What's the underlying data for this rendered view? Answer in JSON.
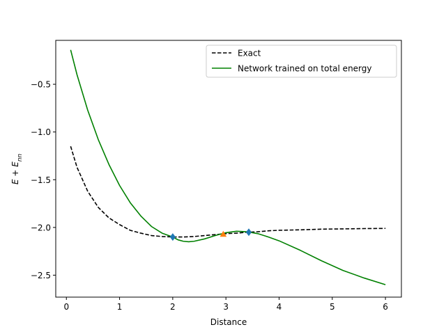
{
  "chart_data": {
    "type": "line",
    "xlabel": "Distance",
    "ylabel": "E + E_nn",
    "xlim": [
      -0.2,
      6.3
    ],
    "ylim": [
      -2.73,
      -0.04
    ],
    "xticks": [
      0,
      1,
      2,
      3,
      4,
      5,
      6
    ],
    "yticks": [
      -2.5,
      -2.0,
      -1.5,
      -1.0,
      -0.5
    ],
    "xtick_labels": [
      "0",
      "1",
      "2",
      "3",
      "4",
      "5",
      "6"
    ],
    "ytick_labels": [
      "−2.5",
      "−2.0",
      "−1.5",
      "−1.0",
      "−0.5"
    ],
    "grid": false,
    "legend_position": "upper right",
    "series": [
      {
        "name": "Exact",
        "color": "#000000",
        "style": "dashed",
        "x": [
          0.08,
          0.2,
          0.4,
          0.6,
          0.8,
          1.0,
          1.2,
          1.4,
          1.6,
          1.8,
          2.0,
          2.2,
          2.4,
          2.6,
          2.8,
          3.0,
          3.2,
          3.4,
          3.6,
          3.8,
          4.0,
          4.4,
          4.8,
          5.2,
          5.6,
          6.0
        ],
        "y": [
          -1.15,
          -1.37,
          -1.62,
          -1.79,
          -1.9,
          -1.97,
          -2.03,
          -2.06,
          -2.085,
          -2.095,
          -2.1,
          -2.1,
          -2.095,
          -2.085,
          -2.075,
          -2.065,
          -2.06,
          -2.05,
          -2.045,
          -2.035,
          -2.03,
          -2.025,
          -2.018,
          -2.015,
          -2.012,
          -2.01
        ]
      },
      {
        "name": "Network trained on total energy",
        "color": "#008000",
        "style": "solid",
        "x": [
          0.08,
          0.2,
          0.4,
          0.6,
          0.8,
          1.0,
          1.2,
          1.4,
          1.6,
          1.8,
          2.0,
          2.1,
          2.2,
          2.3,
          2.4,
          2.6,
          2.8,
          3.0,
          3.2,
          3.4,
          3.6,
          3.8,
          4.0,
          4.4,
          4.8,
          5.2,
          5.6,
          6.0
        ],
        "y": [
          -0.14,
          -0.4,
          -0.77,
          -1.08,
          -1.34,
          -1.56,
          -1.74,
          -1.88,
          -1.99,
          -2.06,
          -2.1,
          -2.13,
          -2.145,
          -2.15,
          -2.145,
          -2.12,
          -2.085,
          -2.055,
          -2.04,
          -2.045,
          -2.065,
          -2.1,
          -2.14,
          -2.24,
          -2.35,
          -2.45,
          -2.53,
          -2.6
        ]
      }
    ],
    "markers": [
      {
        "shape": "diamond",
        "color": "#1f77b4",
        "x": 2.0,
        "y": -2.1
      },
      {
        "shape": "diamond",
        "color": "#1f77b4",
        "x": 3.43,
        "y": -2.05
      },
      {
        "shape": "triangle",
        "color": "#ff7f0e",
        "x": 2.95,
        "y": -2.07
      }
    ]
  }
}
